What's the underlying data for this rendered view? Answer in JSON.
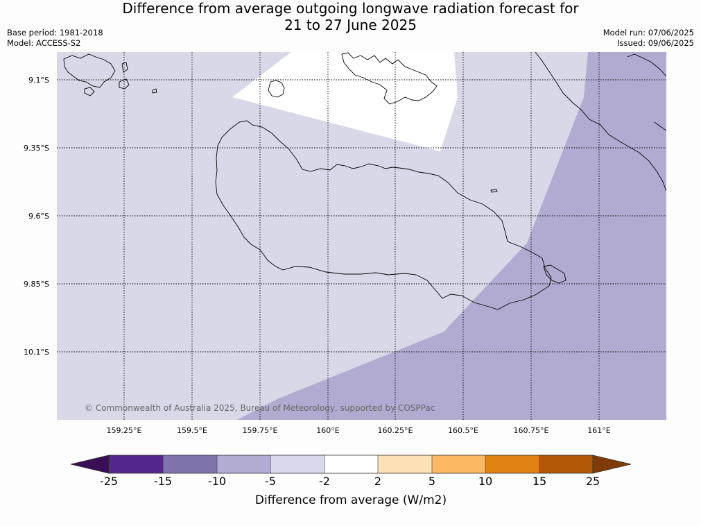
{
  "title": {
    "line1": "Difference from average outgoing longwave radiation forecast for",
    "line2": "21 to 27 June 2025"
  },
  "meta": {
    "base_period": "Base period: 1981-2018",
    "model": "Model: ACCESS-S2",
    "model_run": "Model run: 07/06/2025",
    "issued": "Issued: 09/06/2025"
  },
  "map": {
    "lat_labels": [
      "9.1°S",
      "9.35°S",
      "9.6°S",
      "9.85°S",
      "10.1°S"
    ],
    "lon_labels": [
      "159.25°E",
      "159.5°E",
      "159.75°E",
      "160°E",
      "160.25°E",
      "160.5°E",
      "160.75°E",
      "161°E"
    ],
    "copyright": "© Commonwealth of Australia 2025, Bureau of Meteorology, supported by COSPPac",
    "region_colors": {
      "minus5_to_minus2": "#d8d8e9",
      "minus10_to_minus5": "#b1abd2",
      "minus2_to_2": "#ffffff"
    }
  },
  "colorbar": {
    "label": "Difference from average (W/m2)",
    "ticks": [
      "-25",
      "-15",
      "-10",
      "-5",
      "-2",
      "2",
      "5",
      "10",
      "15",
      "25"
    ],
    "colors": [
      "#3b0f58",
      "#54278f",
      "#8073ac",
      "#b2abd2",
      "#d8daeb",
      "#ffffff",
      "#fee0b6",
      "#fdb863",
      "#e08214",
      "#b35806",
      "#7f3b08"
    ]
  }
}
